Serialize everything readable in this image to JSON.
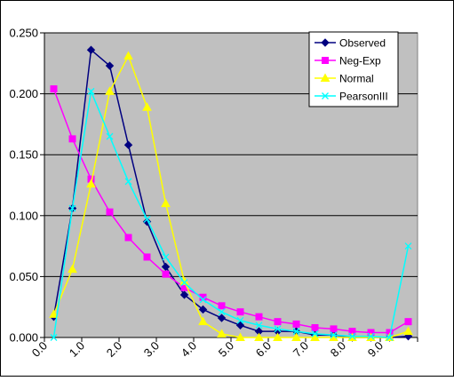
{
  "chart_data": {
    "type": "line",
    "title": "",
    "xlabel": "",
    "ylabel": "",
    "ylim": [
      0,
      0.25
    ],
    "yticks": [
      0,
      0.05,
      0.1,
      0.15,
      0.2,
      0.25
    ],
    "ytick_labels": [
      "0.000",
      "0.050",
      "0.100",
      "0.150",
      "0.200",
      "0.250"
    ],
    "xlim": [
      0,
      10
    ],
    "xticks": [
      0,
      1,
      2,
      3,
      4,
      5,
      6,
      7,
      8,
      9
    ],
    "xtick_labels": [
      "0.0",
      "1.0",
      "2.0",
      "3.0",
      "4.0",
      "5.0",
      "6.0",
      "7.0",
      "8.0",
      "9.0"
    ],
    "plot_background": "#c0c0c0",
    "grid": true,
    "legend_position": "top-right",
    "x": [
      0.25,
      0.75,
      1.25,
      1.75,
      2.25,
      2.75,
      3.25,
      3.75,
      4.25,
      4.75,
      5.25,
      5.75,
      6.25,
      6.75,
      7.25,
      7.75,
      8.25,
      8.75,
      9.25,
      9.75
    ],
    "series": [
      {
        "name": "Observed",
        "color": "#000080",
        "marker": "diamond",
        "values": [
          0.017,
          0.106,
          0.236,
          0.223,
          0.158,
          0.095,
          0.058,
          0.035,
          0.023,
          0.016,
          0.01,
          0.005,
          0.005,
          0.005,
          0.002,
          0.002,
          0.0,
          0.0,
          0.0,
          0.001
        ]
      },
      {
        "name": "Neg-Exp",
        "color": "#ff00ff",
        "marker": "square",
        "values": [
          0.204,
          0.163,
          0.13,
          0.103,
          0.082,
          0.066,
          0.052,
          0.041,
          0.033,
          0.026,
          0.021,
          0.017,
          0.013,
          0.011,
          0.008,
          0.007,
          0.005,
          0.004,
          0.004,
          0.013
        ]
      },
      {
        "name": "Normal",
        "color": "#ffff00",
        "marker": "triangle",
        "values": [
          0.019,
          0.056,
          0.126,
          0.202,
          0.231,
          0.189,
          0.11,
          0.046,
          0.013,
          0.003,
          0.0,
          0.0,
          0.0,
          0.0,
          0.0,
          0.0,
          0.0,
          0.0,
          0.0,
          0.005
        ]
      },
      {
        "name": "PearsonIII",
        "color": "#00ffff",
        "marker": "x",
        "values": [
          0.0,
          0.106,
          0.202,
          0.165,
          0.128,
          0.097,
          0.066,
          0.045,
          0.031,
          0.021,
          0.014,
          0.01,
          0.007,
          0.005,
          0.003,
          0.002,
          0.001,
          0.001,
          0.0,
          0.075
        ]
      }
    ]
  }
}
